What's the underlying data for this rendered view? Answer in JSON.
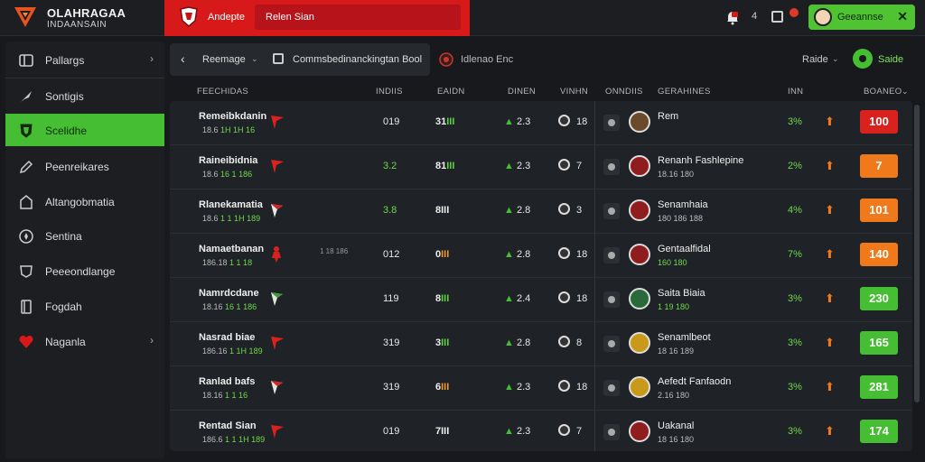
{
  "brand": {
    "title": "OLAHRAGAA",
    "subtitle": "INDAANSAIN"
  },
  "banner": {
    "text": "Andepte",
    "pill": "Relen Sian"
  },
  "topbar": {
    "count": "4",
    "user_name": "Geeannse",
    "close": "✕",
    "accent": "#4fc332"
  },
  "sidebar": {
    "items": [
      {
        "label": "Pallargs",
        "icon": "grid-icon",
        "chevron": "›"
      },
      {
        "label": "Sontigis",
        "icon": "rocket-icon",
        "chevron": ""
      },
      {
        "label": "Scelidhe",
        "icon": "shield-icon",
        "chevron": "",
        "active": true
      },
      {
        "label": "Peenreikares",
        "icon": "pencil-icon",
        "chevron": ""
      },
      {
        "label": "Altangobmatia",
        "icon": "home-icon",
        "chevron": ""
      },
      {
        "label": "Sentina",
        "icon": "compass-icon",
        "chevron": ""
      },
      {
        "label": "Peeeondlange",
        "icon": "badge-icon",
        "chevron": ""
      },
      {
        "label": "Fogdah",
        "icon": "book-icon",
        "chevron": ""
      },
      {
        "label": "Naganla",
        "icon": "heart-icon",
        "chevron": "›"
      }
    ]
  },
  "subbar": {
    "back_label": "Reemage",
    "caret": "⌄",
    "section_label": "Commsbedinanckingtan Bool",
    "league_label": "Idlenao Enc",
    "sort_label": "Raide",
    "live_label": "Saide"
  },
  "headers": {
    "col1": "FEECHIDAS",
    "col2": "INDIIS",
    "col3": "EAIDN",
    "col4": "DINEN",
    "col5": "VINHN",
    "col6": "ONNDIIS",
    "col7": "GERAHINES",
    "col8": "INN",
    "col9": "BOANEO"
  },
  "rows": [
    {
      "name": "Remeibkdanin",
      "sub1": "18.6",
      "sub2": "1H 1H 16",
      "extra": "",
      "c1": "019",
      "c1_green": false,
      "c2a": "31",
      "c2b": "III",
      "c2b_color": "green",
      "c3": "2.3",
      "c4": "18",
      "tname": "Rem",
      "tsub": "",
      "tsub_green": false,
      "pct": "3%",
      "score": "100",
      "score_color": "#d9221e",
      "badge_color": "#6b4a2b"
    },
    {
      "name": "Raineibidnia",
      "sub1": "18.6",
      "sub2": "16 1 186",
      "extra": "",
      "c1": "3.2",
      "c1_green": true,
      "c2a": "81",
      "c2b": "III",
      "c2b_color": "green",
      "c3": "2.3",
      "c4": "7",
      "tname": "Renanh Fashlepine",
      "tsub": "18.16 180",
      "tsub_green": false,
      "pct": "2%",
      "score": "7",
      "score_color": "#f07a1b",
      "badge_color": "#8f1d1d"
    },
    {
      "name": "Rlanekamatia",
      "sub1": "18.6",
      "sub2": "1 1 1H 189",
      "extra": "",
      "c1": "3.8",
      "c1_green": true,
      "c2a": "8",
      "c2b": "III",
      "c2b_color": "white",
      "c3": "2.8",
      "c4": "3",
      "tname": "Senamhaia",
      "tsub": "180 186 188",
      "tsub_green": false,
      "pct": "4%",
      "score": "101",
      "score_color": "#f07a1b",
      "badge_color": "#8f1d1d"
    },
    {
      "name": "Namaetbanan",
      "sub1": "186.18",
      "sub2": "1 1 18",
      "extra": "1 18 186",
      "c1": "012",
      "c1_green": false,
      "c2a": "0",
      "c2b": "III",
      "c2b_color": "orange",
      "c3": "2.8",
      "c4": "18",
      "tname": "Gentaalfidal",
      "tsub": "160 180",
      "tsub_green": true,
      "pct": "7%",
      "score": "140",
      "score_color": "#f07a1b",
      "badge_color": "#8f1d1d"
    },
    {
      "name": "Namrdcdane",
      "sub1": "18.16",
      "sub2": "16 1 186",
      "extra": "",
      "c1": "119",
      "c1_green": false,
      "c2a": "8",
      "c2b": "III",
      "c2b_color": "green",
      "c3": "2.4",
      "c4": "18",
      "tname": "Saita Biaia",
      "tsub": "1 19 180",
      "tsub_green": true,
      "pct": "3%",
      "score": "230",
      "score_color": "#46be33",
      "badge_color": "#2a6a3a"
    },
    {
      "name": "Nasrad biae",
      "sub1": "186.16",
      "sub2": "1 1H 189",
      "extra": "",
      "c1": "319",
      "c1_green": false,
      "c2a": "3",
      "c2b": "III",
      "c2b_color": "green",
      "c3": "2.8",
      "c4": "8",
      "tname": "Senamlbeot",
      "tsub": "18 16 189",
      "tsub_green": false,
      "pct": "3%",
      "score": "165",
      "score_color": "#46be33",
      "badge_color": "#c99a1a"
    },
    {
      "name": "Ranlad bafs",
      "sub1": "18.16",
      "sub2": "1 1 16",
      "extra": "",
      "c1": "319",
      "c1_green": false,
      "c2a": "6",
      "c2b": "III",
      "c2b_color": "orange",
      "c3": "2.3",
      "c4": "18",
      "tname": "Aefedt Fanfaodn",
      "tsub": "2.16 180",
      "tsub_green": false,
      "pct": "3%",
      "score": "281",
      "score_color": "#46be33",
      "badge_color": "#c99a1a"
    },
    {
      "name": "Rentad Sian",
      "sub1": "186.6",
      "sub2": "1 1 1H 189",
      "extra": "",
      "c1": "019",
      "c1_green": false,
      "c2a": "7",
      "c2b": "III",
      "c2b_color": "white",
      "c3": "2.3",
      "c4": "7",
      "tname": "Uakanal",
      "tsub": "18 16 180",
      "tsub_green": false,
      "pct": "3%",
      "score": "174",
      "score_color": "#46be33",
      "badge_color": "#8f1d1d"
    }
  ]
}
